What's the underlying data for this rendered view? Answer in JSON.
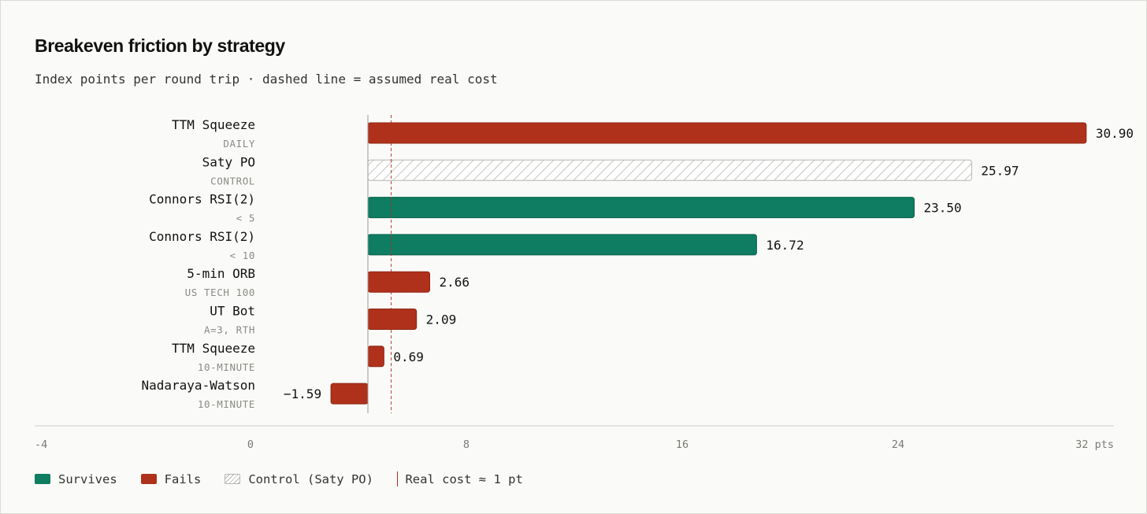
{
  "title": "Breakeven friction by strategy",
  "subtitle": "Index points per round trip · dashed line = assumed real cost",
  "colors": {
    "survives": "#0e7d62",
    "fails": "#b0311b",
    "control_fill": "#ffffff",
    "control_hatch": "#b5b5b0",
    "axis": "#9a9a96",
    "tick_text": "#7a7a76",
    "label_text": "#111111",
    "sublabel_text": "#8a8a86",
    "value_text": "#111111"
  },
  "legend": {
    "survives": "Survives",
    "fails": "Fails",
    "control": "Control (Saty PO)",
    "real_cost": "Real cost ≈ 1 pt"
  },
  "chart_data": {
    "type": "bar",
    "orientation": "horizontal",
    "x_range": [
      -4,
      32
    ],
    "x_ticks": [
      -4,
      0,
      8,
      16,
      24,
      32
    ],
    "x_tick_labels": [
      "-4",
      "0",
      "8",
      "16",
      "24",
      "32 pts"
    ],
    "reference_line": {
      "value": 1,
      "style": "dashed"
    },
    "bars": [
      {
        "label": "TTM Squeeze",
        "sublabel": "DAILY",
        "value": 30.9,
        "display": "30.90",
        "status": "fails"
      },
      {
        "label": "Saty PO",
        "sublabel": "CONTROL",
        "value": 25.97,
        "display": "25.97",
        "status": "control"
      },
      {
        "label": "Connors RSI(2)",
        "sublabel": "< 5",
        "value": 23.5,
        "display": "23.50",
        "status": "survives"
      },
      {
        "label": "Connors RSI(2)",
        "sublabel": "< 10",
        "value": 16.72,
        "display": "16.72",
        "status": "survives"
      },
      {
        "label": "5-min ORB",
        "sublabel": "US TECH 100",
        "value": 2.66,
        "display": "2.66",
        "status": "fails"
      },
      {
        "label": "UT Bot",
        "sublabel": "A=3, RTH",
        "value": 2.09,
        "display": "2.09",
        "status": "fails"
      },
      {
        "label": "TTM Squeeze",
        "sublabel": "10-MINUTE",
        "value": 0.69,
        "display": "0.69",
        "status": "fails"
      },
      {
        "label": "Nadaraya-Watson",
        "sublabel": "10-MINUTE",
        "value": -1.59,
        "display": "−1.59",
        "status": "fails"
      }
    ]
  }
}
